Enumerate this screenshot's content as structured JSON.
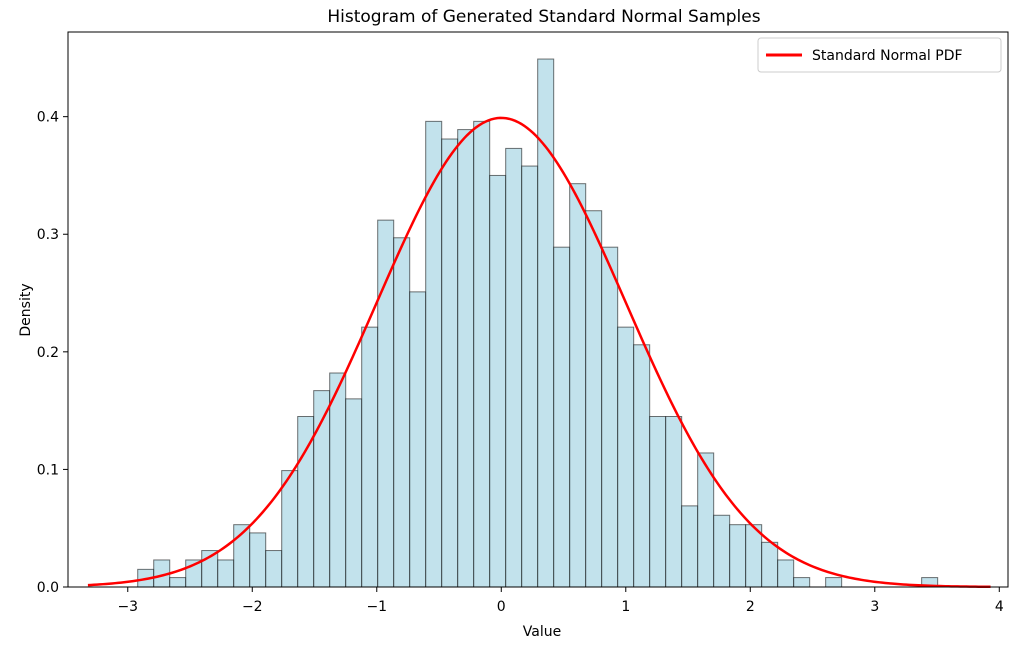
{
  "chart_data": {
    "type": "bar",
    "title": "Histogram of Generated Standard Normal Samples",
    "xlabel": "Value",
    "ylabel": "Density",
    "xlim": [
      -3.48,
      4.07
    ],
    "ylim": [
      0,
      0.472
    ],
    "xticks": [
      -3,
      -2,
      -1,
      0,
      1,
      2,
      3,
      4
    ],
    "xtick_labels": [
      "−3",
      "−2",
      "−1",
      "0",
      "1",
      "2",
      "3",
      "4"
    ],
    "yticks": [
      0.0,
      0.1,
      0.2,
      0.3,
      0.4
    ],
    "ytick_labels": [
      "0.0",
      "0.1",
      "0.2",
      "0.3",
      "0.4"
    ],
    "grid": false,
    "legend": {
      "position": "top-right",
      "entries": [
        "Standard Normal PDF"
      ]
    },
    "histogram": {
      "bin_start": -2.92,
      "bin_width": 0.1285,
      "densities": [
        0.015,
        0.023,
        0.008,
        0.023,
        0.031,
        0.023,
        0.053,
        0.046,
        0.031,
        0.099,
        0.145,
        0.167,
        0.182,
        0.16,
        0.221,
        0.312,
        0.297,
        0.251,
        0.396,
        0.381,
        0.389,
        0.396,
        0.35,
        0.373,
        0.358,
        0.449,
        0.289,
        0.343,
        0.32,
        0.289,
        0.221,
        0.206,
        0.145,
        0.145,
        0.069,
        0.114,
        0.061,
        0.053,
        0.053,
        0.038,
        0.023,
        0.008,
        0.0,
        0.008,
        0.0,
        0.0,
        0.0,
        0.0,
        0.0,
        0.008
      ],
      "fill_color": "#add8e6",
      "edge_color": "#000000"
    },
    "series": [
      {
        "name": "Standard Normal PDF",
        "type": "line",
        "function": "standard-normal-pdf",
        "x_range": [
          -3.32,
          3.93
        ],
        "color": "#ff0000"
      }
    ]
  }
}
